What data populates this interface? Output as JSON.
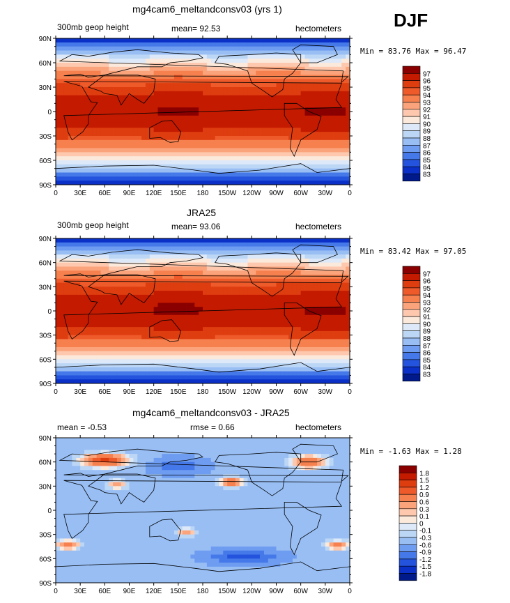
{
  "season": "DJF",
  "panels": [
    {
      "title": "mg4cam6_meltandconsv03 (yrs 1)",
      "left_label": "300mb geop height",
      "center_label": "mean=   92.53",
      "right_label": "hectometers",
      "minmax": "Min =  83.76 Max =  96.47",
      "levels": [
        "97",
        "96",
        "95",
        "94",
        "93",
        "92",
        "91",
        "90",
        "89",
        "88",
        "87",
        "86",
        "85",
        "84",
        "83"
      ],
      "colors": [
        "#8a0000",
        "#c41a00",
        "#de3d10",
        "#ee5a2a",
        "#f6804e",
        "#fba47c",
        "#fdc8ad",
        "#fbe9dc",
        "#dde9f8",
        "#bcd6f6",
        "#98bef4",
        "#6d9cf0",
        "#4578e8",
        "#2454dd",
        "#0a30c8",
        "#001a8c"
      ]
    },
    {
      "title": "JRA25",
      "left_label": "300mb geop height",
      "center_label": "mean=   93.06",
      "right_label": "hectometers",
      "minmax": "Min =  83.42 Max =  97.05",
      "levels": [
        "97",
        "96",
        "95",
        "94",
        "93",
        "92",
        "91",
        "90",
        "89",
        "88",
        "87",
        "86",
        "85",
        "84",
        "83"
      ],
      "colors": [
        "#8a0000",
        "#c41a00",
        "#de3d10",
        "#ee5a2a",
        "#f6804e",
        "#fba47c",
        "#fdc8ad",
        "#fbe9dc",
        "#dde9f8",
        "#bcd6f6",
        "#98bef4",
        "#6d9cf0",
        "#4578e8",
        "#2454dd",
        "#0a30c8",
        "#001a8c"
      ]
    },
    {
      "title": "mg4cam6_meltandconsv03 - JRA25",
      "left_label": "mean =   -0.53",
      "center_label": "rmse =    0.66",
      "right_label": "hectometers",
      "minmax": "Min =  -1.63 Max =    1.28",
      "levels": [
        "1.8",
        "1.5",
        "1.2",
        "0.9",
        "0.6",
        "0.3",
        "0.1",
        "0",
        "-0.1",
        "-0.3",
        "-0.6",
        "-0.9",
        "-1.2",
        "-1.5",
        "-1.8"
      ],
      "colors": [
        "#8a0000",
        "#c41a00",
        "#de3d10",
        "#ee5a2a",
        "#f6804e",
        "#fba47c",
        "#fdc8ad",
        "#fbe9dc",
        "#dde9f8",
        "#bcd6f6",
        "#98bef4",
        "#6d9cf0",
        "#4578e8",
        "#2454dd",
        "#0a30c8",
        "#001a8c"
      ]
    }
  ],
  "axes": {
    "y_ticks": [
      "90N",
      "60N",
      "30N",
      "0",
      "30S",
      "60S",
      "90S"
    ],
    "x_ticks": [
      "0",
      "30E",
      "60E",
      "90E",
      "120E",
      "150E",
      "180",
      "150W",
      "120W",
      "90W",
      "60W",
      "30W",
      "0"
    ]
  },
  "chart_data": [
    {
      "type": "heatmap",
      "title": "mg4cam6_meltandconsv03 (yrs 1)",
      "variable": "300mb geop height",
      "units": "hectometers",
      "mean": 92.53,
      "min": 83.76,
      "max": 96.47,
      "contour_levels": [
        83,
        84,
        85,
        86,
        87,
        88,
        89,
        90,
        91,
        92,
        93,
        94,
        95,
        96,
        97
      ],
      "x": [
        "0",
        "30E",
        "60E",
        "90E",
        "120E",
        "150E",
        "180",
        "150W",
        "120W",
        "90W",
        "60W",
        "30W",
        "0"
      ],
      "y": [
        "90N",
        "60N",
        "30N",
        "0",
        "30S",
        "60S",
        "90S"
      ]
    },
    {
      "type": "heatmap",
      "title": "JRA25",
      "variable": "300mb geop height",
      "units": "hectometers",
      "mean": 93.06,
      "min": 83.42,
      "max": 97.05,
      "contour_levels": [
        83,
        84,
        85,
        86,
        87,
        88,
        89,
        90,
        91,
        92,
        93,
        94,
        95,
        96,
        97
      ],
      "x": [
        "0",
        "30E",
        "60E",
        "90E",
        "120E",
        "150E",
        "180",
        "150W",
        "120W",
        "90W",
        "60W",
        "30W",
        "0"
      ],
      "y": [
        "90N",
        "60N",
        "30N",
        "0",
        "30S",
        "60S",
        "90S"
      ]
    },
    {
      "type": "heatmap",
      "title": "mg4cam6_meltandconsv03 - JRA25",
      "units": "hectometers",
      "mean": -0.53,
      "rmse": 0.66,
      "min": -1.63,
      "max": 1.28,
      "contour_levels": [
        -1.8,
        -1.5,
        -1.2,
        -0.9,
        -0.6,
        -0.3,
        -0.1,
        0,
        0.1,
        0.3,
        0.6,
        0.9,
        1.2,
        1.5,
        1.8
      ],
      "x": [
        "0",
        "30E",
        "60E",
        "90E",
        "120E",
        "150E",
        "180",
        "150W",
        "120W",
        "90W",
        "60W",
        "30W",
        "0"
      ],
      "y": [
        "90N",
        "60N",
        "30N",
        "0",
        "30S",
        "60S",
        "90S"
      ]
    }
  ]
}
